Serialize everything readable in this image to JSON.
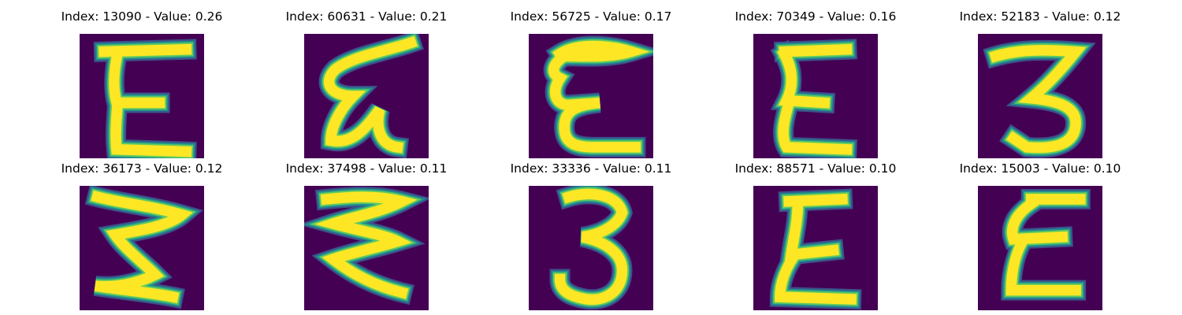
{
  "chart_data": {
    "type": "image_grid",
    "title": "",
    "rows": 2,
    "columns": 5,
    "colormap": "viridis",
    "colors": {
      "background": "#440154",
      "foreground": "#fde725",
      "edge_low": "#3b528b",
      "edge_mid": "#21918c",
      "edge_high": "#5ec962"
    },
    "panels": [
      {
        "title": "Index: 13090 - Value: 0.26",
        "index": 13090,
        "value": 0.26,
        "glyph": "E"
      },
      {
        "title": "Index: 60631 - Value: 0.21",
        "index": 60631,
        "value": 0.21,
        "glyph": "E-slanted"
      },
      {
        "title": "Index: 56725 - Value: 0.17",
        "index": 56725,
        "value": 0.17,
        "glyph": "E-rounded"
      },
      {
        "title": "Index: 70349 - Value: 0.16",
        "index": 70349,
        "value": 0.16,
        "glyph": "E"
      },
      {
        "title": "Index: 52183 - Value: 0.12",
        "index": 52183,
        "value": 0.12,
        "glyph": "3"
      },
      {
        "title": "Index: 36173 - Value: 0.12",
        "index": 36173,
        "value": 0.12,
        "glyph": "zigzag"
      },
      {
        "title": "Index: 37498 - Value: 0.11",
        "index": 37498,
        "value": 0.11,
        "glyph": "zigzag"
      },
      {
        "title": "Index: 33336 - Value: 0.11",
        "index": 33336,
        "value": 0.11,
        "glyph": "3"
      },
      {
        "title": "Index: 88571 - Value: 0.10",
        "index": 88571,
        "value": 0.1,
        "glyph": "E-pointed"
      },
      {
        "title": "Index: 15003 - Value: 0.10",
        "index": 15003,
        "value": 0.1,
        "glyph": "E-slanted"
      }
    ]
  }
}
